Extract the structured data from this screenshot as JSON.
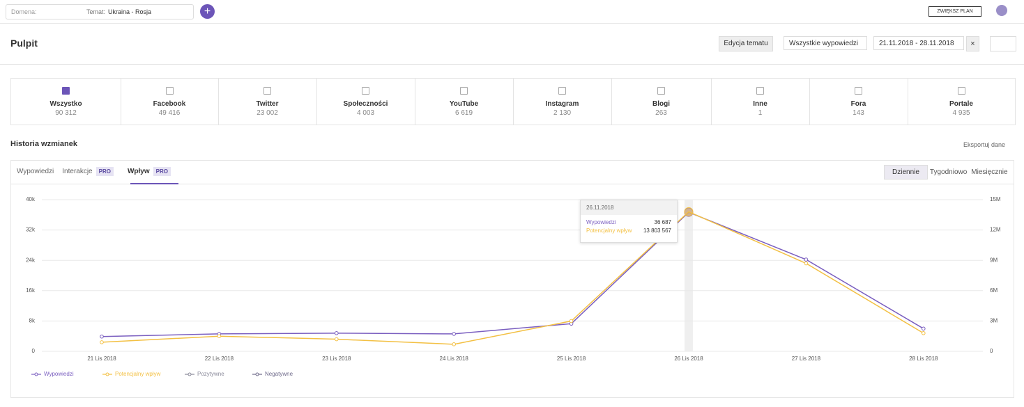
{
  "topbar": {
    "domain_label": "Domena:",
    "topic_label": "Temat:",
    "topic_value": "Ukraina - Rosja",
    "upgrade": "ZWIĘKSZ PLAN"
  },
  "header": {
    "title": "Pulpit",
    "edit_button": "Edycja tematu",
    "filter": "Wszystkie wypowiedzi",
    "date_range": "21.11.2018 - 28.11.2018"
  },
  "sources": [
    {
      "name": "Wszystko",
      "count": "90 312",
      "checked": true
    },
    {
      "name": "Facebook",
      "count": "49 416",
      "checked": false
    },
    {
      "name": "Twitter",
      "count": "23 002",
      "checked": false
    },
    {
      "name": "Społeczności",
      "count": "4 003",
      "checked": false
    },
    {
      "name": "YouTube",
      "count": "6 619",
      "checked": false
    },
    {
      "name": "Instagram",
      "count": "2 130",
      "checked": false
    },
    {
      "name": "Blogi",
      "count": "263",
      "checked": false
    },
    {
      "name": "Inne",
      "count": "1",
      "checked": false
    },
    {
      "name": "Fora",
      "count": "143",
      "checked": false
    },
    {
      "name": "Portale",
      "count": "4 935",
      "checked": false
    }
  ],
  "history": {
    "title": "Historia wzmianek",
    "export": "Eksportuj dane",
    "tabs": [
      "Wypowiedzi",
      "Interakcje",
      "Wpływ"
    ],
    "pro": "PRO",
    "periods": [
      "Dziennie",
      "Tygodniowo",
      "Miesięcznie"
    ]
  },
  "chart_data": {
    "type": "line",
    "categories": [
      "21 Lis 2018",
      "22 Lis 2018",
      "23 Lis 2018",
      "24 Lis 2018",
      "25 Lis 2018",
      "26 Lis 2018",
      "27 Lis 2018",
      "28 Lis 2018"
    ],
    "series": [
      {
        "name": "Wypowiedzi",
        "color": "#7b5fc0",
        "values": [
          3900,
          4600,
          4800,
          4600,
          7300,
          36687,
          24200,
          6000
        ]
      },
      {
        "name": "Potencjalny wpływ",
        "color": "#f3c043",
        "axis": "y2",
        "values": [
          900000,
          1500000,
          1200000,
          700000,
          3000000,
          13803567,
          8700000,
          1800000
        ]
      }
    ],
    "legend_items": [
      {
        "name": "Pozytywne",
        "color": "#8a8a9a"
      },
      {
        "name": "Negatywne",
        "color": "#6e6a8a"
      }
    ],
    "ylim": [
      0,
      40000
    ],
    "yticks": [
      0,
      {
        "value": 8000,
        "label": "8k"
      },
      {
        "value": 16000,
        "label": "16k"
      },
      {
        "value": 24000,
        "label": "24k"
      },
      {
        "value": 32000,
        "label": "32k"
      },
      {
        "value": 40000,
        "label": "40k"
      }
    ],
    "y2lim": [
      0,
      15000000
    ],
    "y2ticks": [
      0,
      {
        "value": 3000000,
        "label": "3M"
      },
      {
        "value": 6000000,
        "label": "6M"
      },
      {
        "value": 9000000,
        "label": "9M"
      },
      {
        "value": 12000000,
        "label": "12M"
      },
      {
        "value": 15000000,
        "label": "15M"
      }
    ],
    "grid": true,
    "tooltip": {
      "title": "26.11.2018",
      "rows": [
        {
          "label": "Wypowiedzi",
          "value": "36 687"
        },
        {
          "label": "Potencjalny wpływ",
          "value": "13 803 567"
        }
      ]
    }
  }
}
